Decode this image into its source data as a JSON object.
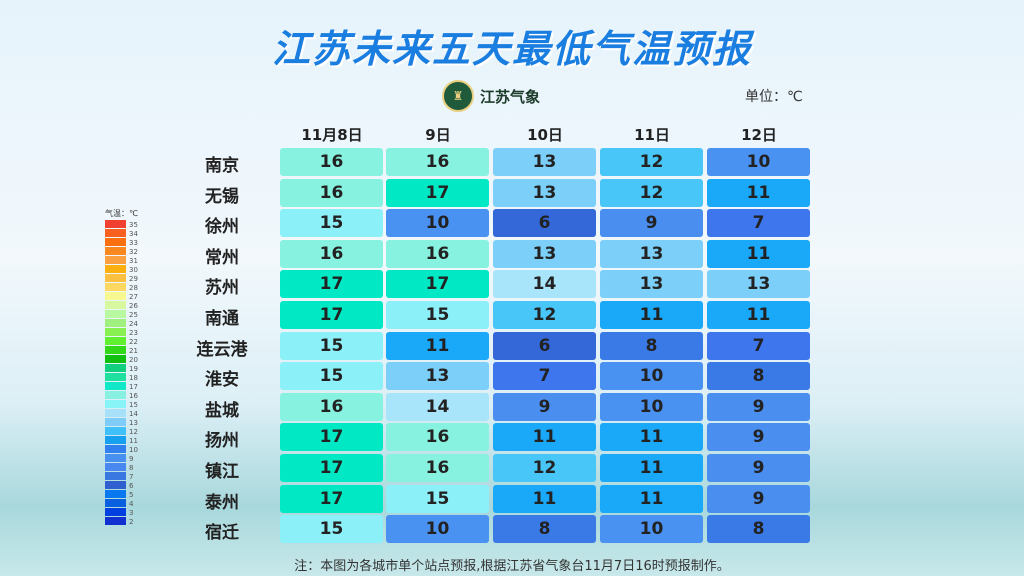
{
  "title": "江苏未来五天最低气温预报",
  "logo_text": "江苏气象",
  "unit": "单位：℃",
  "columns": [
    "11月8日",
    "9日",
    "10日",
    "11日",
    "12日"
  ],
  "rows": [
    {
      "city": "南京",
      "values": [
        16,
        16,
        13,
        12,
        10
      ]
    },
    {
      "city": "无锡",
      "values": [
        16,
        17,
        13,
        12,
        11
      ]
    },
    {
      "city": "徐州",
      "values": [
        15,
        10,
        6,
        9,
        7
      ]
    },
    {
      "city": "常州",
      "values": [
        16,
        16,
        13,
        13,
        11
      ]
    },
    {
      "city": "苏州",
      "values": [
        17,
        17,
        14,
        13,
        13
      ]
    },
    {
      "city": "南通",
      "values": [
        17,
        15,
        12,
        11,
        11
      ]
    },
    {
      "city": "连云港",
      "values": [
        15,
        11,
        6,
        8,
        7
      ]
    },
    {
      "city": "淮安",
      "values": [
        15,
        13,
        7,
        10,
        8
      ]
    },
    {
      "city": "盐城",
      "values": [
        16,
        14,
        9,
        10,
        9
      ]
    },
    {
      "city": "扬州",
      "values": [
        17,
        16,
        11,
        11,
        9
      ]
    },
    {
      "city": "镇江",
      "values": [
        17,
        16,
        12,
        11,
        9
      ]
    },
    {
      "city": "泰州",
      "values": [
        17,
        15,
        11,
        11,
        9
      ]
    },
    {
      "city": "宿迁",
      "values": [
        15,
        10,
        8,
        10,
        8
      ]
    }
  ],
  "legend": {
    "title": "气温：℃",
    "labels": [
      35,
      34,
      33,
      32,
      31,
      30,
      29,
      28,
      27,
      26,
      25,
      24,
      23,
      22,
      21,
      20,
      19,
      18,
      17,
      16,
      15,
      14,
      13,
      12,
      11,
      10,
      9,
      8,
      7,
      6,
      5,
      4,
      3,
      2
    ],
    "colors": [
      "#f04030",
      "#f86020",
      "#fa7010",
      "#fa8820",
      "#fba040",
      "#fcb010",
      "#fcc040",
      "#fcd860",
      "#f8f890",
      "#d8f8a0",
      "#b8f8a0",
      "#a0f080",
      "#88f050",
      "#60f030",
      "#30d818",
      "#10c010",
      "#10d080",
      "#20e0a0",
      "#10e8c8",
      "#88f0e0",
      "#88f4f8",
      "#a8e0fa",
      "#80ccf8",
      "#40c0f8",
      "#18a0f0",
      "#3080f0",
      "#4890f0",
      "#4888f0",
      "#3878e0",
      "#3060d0",
      "#0878f0",
      "#0860e0",
      "#0040e0",
      "#1030d0"
    ]
  },
  "note": "注：本图为各城市单个站点预报,根据江苏省气象台11月7日16时预报制作。"
}
